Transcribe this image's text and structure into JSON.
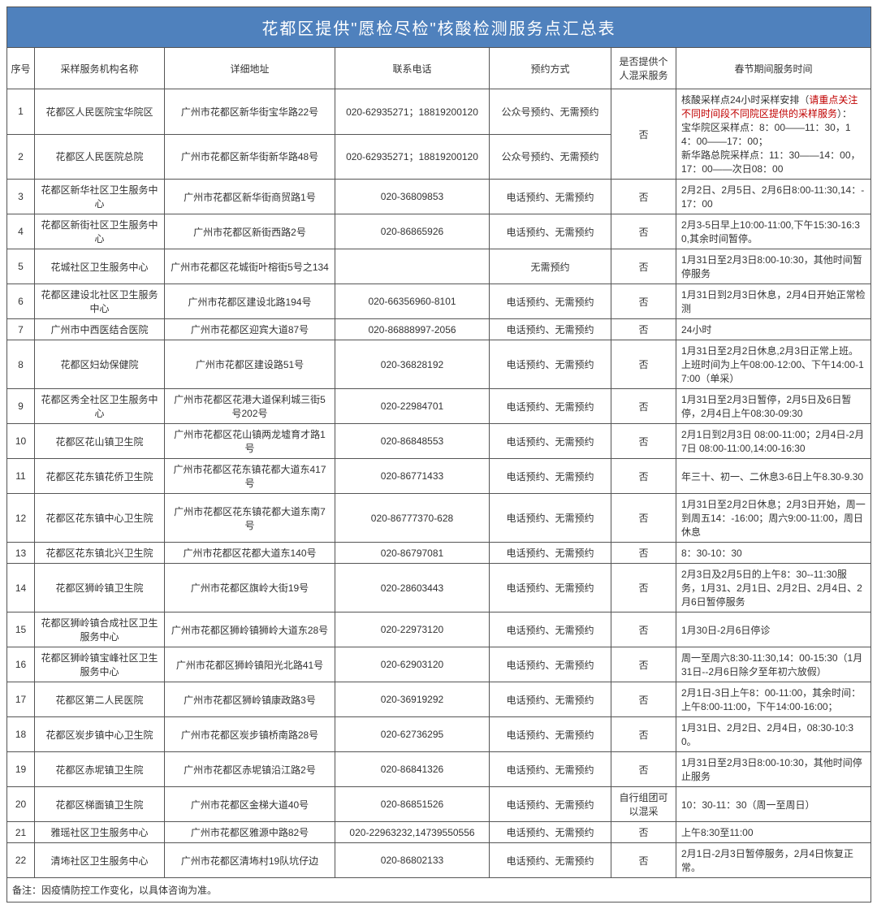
{
  "title": "花都区提供\"愿检尽检\"核酸检测服务点汇总表",
  "columns": [
    "序号",
    "采样服务机构名称",
    "详细地址",
    "联系电话",
    "预约方式",
    "是否提供个人混采服务",
    "春节期间服务时间"
  ],
  "footnote": "备注：因疫情防控工作变化，以具体咨询为准。",
  "mergedTime": {
    "prefix": "核酸采样点24小时采样安排（",
    "highlight": "请重点关注不同时间段不同院区提供的采样服务",
    "suffix": "）：",
    "line1": "宝华院区采样点：8：00——11：30，14：00——17：00；",
    "line2": "新华路总院采样点：11：30——14：00，17：00——次日08：00"
  },
  "rows": [
    {
      "idx": "1",
      "name": "花都区人民医院宝华院区",
      "addr": "广州市花都区新华街宝华路22号",
      "phone": "020-62935271；18819200120",
      "book": "公众号预约、无需预约",
      "mix": "否",
      "mixRowspan": 2,
      "timeMerged": true
    },
    {
      "idx": "2",
      "name": "花都区人民医院总院",
      "addr": "广州市花都区新华街新华路48号",
      "phone": "020-62935271；18819200120",
      "book": "公众号预约、无需预约"
    },
    {
      "idx": "3",
      "name": "花都区新华社区卫生服务中心",
      "addr": "广州市花都区新华街商贸路1号",
      "phone": "020-36809853",
      "book": "电话预约、无需预约",
      "mix": "否",
      "time": "2月2日、2月5日、2月6日8:00-11:30,14：-17：00"
    },
    {
      "idx": "4",
      "name": "花都区新街社区卫生服务中心",
      "addr": "广州市花都区新街西路2号",
      "phone": "020-86865926",
      "book": "电话预约、无需预约",
      "mix": "否",
      "time": "2月3-5日早上10:00-11:00,下午15:30-16:30,其余时间暂停。"
    },
    {
      "idx": "5",
      "name": "花城社区卫生服务中心",
      "addr": "广州市花都区花城街叶榕街5号之134",
      "phone": "",
      "book": "无需预约",
      "mix": "否",
      "time": "1月31日至2月3日8:00-10:30，其他时间暂停服务"
    },
    {
      "idx": "6",
      "name": "花都区建设北社区卫生服务中心",
      "addr": "广州市花都区建设北路194号",
      "phone": "020-66356960-8101",
      "book": "电话预约、无需预约",
      "mix": "否",
      "time": "1月31日到2月3日休息，2月4日开始正常检测"
    },
    {
      "idx": "7",
      "name": "广州市中西医结合医院",
      "addr": "广州市花都区迎宾大道87号",
      "phone": "020-86888997-2056",
      "book": "电话预约、无需预约",
      "mix": "否",
      "time": "24小时"
    },
    {
      "idx": "8",
      "name": "花都区妇幼保健院",
      "addr": "广州市花都区建设路51号",
      "phone": "020-36828192",
      "book": "电话预约、无需预约",
      "mix": "否",
      "time": "1月31日至2月2日休息,2月3日正常上班。上班时间为上午08:00-12:00、下午14:00-17:00（单采）"
    },
    {
      "idx": "9",
      "name": "花都区秀全社区卫生服务中心",
      "addr": "广州市花都区花港大道保利城三街5号202号",
      "phone": "020-22984701",
      "book": "电话预约、无需预约",
      "mix": "否",
      "time": "1月31日至2月3日暂停，2月5日及6日暂停，2月4日上午08:30-09:30"
    },
    {
      "idx": "10",
      "name": "花都区花山镇卫生院",
      "addr": "广州市花都区花山镇两龙墟育才路1号",
      "phone": "020-86848553",
      "book": "电话预约、无需预约",
      "mix": "否",
      "time": "2月1日到2月3日 08:00-11:00；2月4日-2月7日 08:00-11:00,14:00-16:30"
    },
    {
      "idx": "11",
      "name": "花都区花东镇花侨卫生院",
      "addr": "广州市花都区花东镇花都大道东417号",
      "phone": "020-86771433",
      "book": "电话预约、无需预约",
      "mix": "否",
      "time": "年三十、初一、二休息3-6日上午8.30-9.30"
    },
    {
      "idx": "12",
      "name": "花都区花东镇中心卫生院",
      "addr": "广州市花都区花东镇花都大道东南7号",
      "phone": "020-86777370-628",
      "book": "电话预约、无需预约",
      "mix": "否",
      "time": "1月31日至2月2日休息；2月3日开始，周一到周五14：-16:00；周六9:00-11:00，周日休息"
    },
    {
      "idx": "13",
      "name": "花都区花东镇北兴卫生院",
      "addr": "广州市花都区花都大道东140号",
      "phone": "020-86797081",
      "book": "电话预约、无需预约",
      "mix": "否",
      "time": "8：30-10：30"
    },
    {
      "idx": "14",
      "name": "花都区狮岭镇卫生院",
      "addr": "广州市花都区旗岭大街19号",
      "phone": "020-28603443",
      "book": "电话预约、无需预约",
      "mix": "否",
      "time": "2月3日及2月5日的上午8：30--11:30服务，1月31、2月1日、2月2日、2月4日、2月6日暂停服务"
    },
    {
      "idx": "15",
      "name": "花都区狮岭镇合成社区卫生服务中心",
      "addr": "广州市花都区狮岭镇狮岭大道东28号",
      "phone": "020-22973120",
      "book": "电话预约、无需预约",
      "mix": "否",
      "time": "1月30日-2月6日停诊"
    },
    {
      "idx": "16",
      "name": "花都区狮岭镇宝峰社区卫生服务中心",
      "addr": "广州市花都区狮岭镇阳光北路41号",
      "phone": "020-62903120",
      "book": "电话预约、无需预约",
      "mix": "否",
      "time": "周一至周六8:30-11:30,14：00-15:30（1月31日--2月6日除夕至年初六放假）"
    },
    {
      "idx": "17",
      "name": "花都区第二人民医院",
      "addr": "广州市花都区狮岭镇康政路3号",
      "phone": "020-36919292",
      "book": "电话预约、无需预约",
      "mix": "否",
      "time": "2月1日-3日上午8：00-11:00，其余时间：上午8:00-11:00，下午14:00-16:00；"
    },
    {
      "idx": "18",
      "name": "花都区炭步镇中心卫生院",
      "addr": "广州市花都区炭步镇桥南路28号",
      "phone": "020-62736295",
      "book": "电话预约、无需预约",
      "mix": "否",
      "time": "1月31日、2月2日、2月4日，08:30-10:30。"
    },
    {
      "idx": "19",
      "name": "花都区赤坭镇卫生院",
      "addr": "广州市花都区赤坭镇沿江路2号",
      "phone": "020-86841326",
      "book": "电话预约、无需预约",
      "mix": "否",
      "time": "1月31日至2月3日8:00-10:30，其他时间停止服务"
    },
    {
      "idx": "20",
      "name": "花都区梯面镇卫生院",
      "addr": "广州市花都区金梯大道40号",
      "phone": "020-86851526",
      "book": "电话预约、无需预约",
      "mix": "自行组团可以混采",
      "time": "10：30-11：30（周一至周日）"
    },
    {
      "idx": "21",
      "name": "雅瑶社区卫生服务中心",
      "addr": "广州市花都区雅源中路82号",
      "phone": "020-22963232,14739550556",
      "book": "电话预约、无需预约",
      "mix": "否",
      "time": "上午8:30至11:00"
    },
    {
      "idx": "22",
      "name": "清㘵社区卫生服务中心",
      "addr": "广州市花都区清㘵村19队坑仔边",
      "phone": "020-86802133",
      "book": "电话预约、无需预约",
      "mix": "否",
      "time": "2月1日-2月3日暂停服务，2月4日恢复正常。"
    }
  ]
}
